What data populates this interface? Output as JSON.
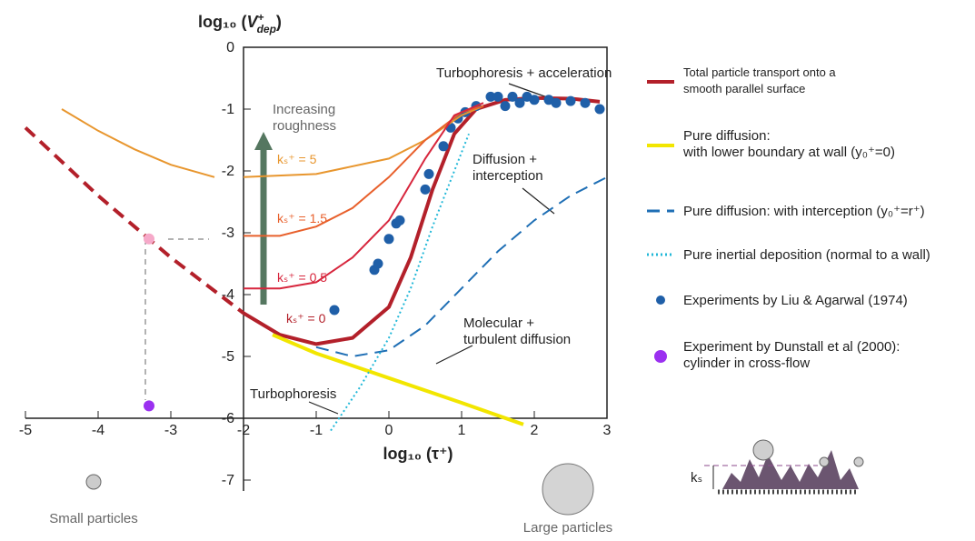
{
  "chart_data": {
    "type": "line",
    "xlabel": "log₁₀ (τ⁺)",
    "ylabel": [
      "log₁₀ (",
      "V",
      "+",
      "dep",
      ")"
    ],
    "xlim": [
      -5,
      3
    ],
    "ylim": [
      -7,
      0
    ],
    "xticks": [
      -5,
      -4,
      -3,
      -2,
      -1,
      0,
      1,
      2,
      3
    ],
    "yticks": [
      -7,
      -6,
      -5,
      -4,
      -3,
      -2,
      -1,
      0
    ],
    "series": [
      {
        "name": [
          "Total particle transport onto a",
          "smooth parallel surface"
        ],
        "label": "kₛ⁺ = 0",
        "color": "#b3202a",
        "kind": "line",
        "style": "solid",
        "width": 4,
        "x": [
          -2,
          -1.5,
          -1,
          -0.5,
          0,
          0.3,
          0.6,
          0.9,
          1.2,
          1.6,
          2,
          2.5,
          2.9
        ],
        "values": [
          -4.3,
          -4.65,
          -4.8,
          -4.7,
          -4.2,
          -3.4,
          -2.3,
          -1.4,
          -1.0,
          -0.85,
          -0.82,
          -0.83,
          -0.88
        ]
      },
      {
        "color": "#b3202a",
        "kind": "line",
        "style": "dashed",
        "width": 4,
        "x": [
          -5,
          -4.5,
          -4,
          -3.5,
          -3,
          -2.5,
          -2
        ],
        "values": [
          -1.3,
          -1.85,
          -2.4,
          -2.9,
          -3.4,
          -3.85,
          -4.3
        ]
      },
      {
        "name": [
          "Pure diffusion:",
          "with lower boundary at wall  (y₀⁺=0)"
        ],
        "color": "#f2e600",
        "kind": "line",
        "style": "solid",
        "width": 4,
        "x": [
          -1.6,
          -1,
          0,
          1,
          1.85
        ],
        "values": [
          -4.65,
          -4.95,
          -5.35,
          -5.75,
          -6.1
        ]
      },
      {
        "name": [
          "Pure diffusion: with interception (y₀⁺=r⁺)"
        ],
        "color": "#1f6fb5",
        "kind": "line",
        "style": "dashed",
        "width": 2,
        "x": [
          -1,
          -0.5,
          0,
          0.5,
          1,
          1.5,
          2,
          2.5,
          3
        ],
        "values": [
          -4.85,
          -5.0,
          -4.9,
          -4.5,
          -3.9,
          -3.3,
          -2.8,
          -2.4,
          -2.1
        ]
      },
      {
        "name": [
          "Pure inertial deposition (normal to a wall)"
        ],
        "color": "#22b8d8",
        "kind": "line",
        "style": "dotted",
        "width": 2,
        "x": [
          -0.8,
          -0.4,
          0,
          0.3,
          0.6,
          0.9,
          1.1
        ],
        "values": [
          -6.2,
          -5.5,
          -4.7,
          -3.9,
          -2.9,
          -2.0,
          -1.4
        ]
      },
      {
        "name": [
          "Experiments by Liu & Agarwal (1974)"
        ],
        "color": "#1f5fa8",
        "kind": "scatter",
        "x": [
          -0.75,
          -0.2,
          -0.15,
          0,
          0.1,
          0.15,
          0.5,
          0.55,
          0.75,
          0.85,
          0.95,
          1.05,
          1.2,
          1.4,
          1.5,
          1.6,
          1.7,
          1.8,
          1.9,
          2.0,
          2.2,
          2.3,
          2.5,
          2.7,
          2.9
        ],
        "values": [
          -4.25,
          -3.6,
          -3.5,
          -3.1,
          -2.85,
          -2.8,
          -2.3,
          -2.05,
          -1.6,
          -1.3,
          -1.15,
          -1.05,
          -0.95,
          -0.8,
          -0.8,
          -0.95,
          -0.8,
          -0.9,
          -0.8,
          -0.85,
          -0.85,
          -0.9,
          -0.87,
          -0.9,
          -1.0
        ]
      },
      {
        "name": [
          "Experiment by Dunstall et al (2000):",
          "cylinder in cross-flow"
        ],
        "color": "#9b30f0",
        "kind": "scatter",
        "x": [
          -3.3
        ],
        "values": [
          -5.8
        ]
      },
      {
        "color": "#f6a9c9",
        "kind": "scatter",
        "x": [
          -3.3
        ],
        "values": [
          -3.1
        ]
      },
      {
        "label": "kₛ⁺ = 5",
        "color": "#e8962e",
        "kind": "line",
        "style": "solid",
        "width": 2,
        "x": [
          -4.5,
          -4,
          -3.5,
          -3,
          -2.4,
          -2.2,
          -2,
          -1,
          0,
          0.5,
          1,
          1.3
        ],
        "values": [
          -1.0,
          -1.35,
          -1.65,
          -1.9,
          -2.1,
          null,
          -2.1,
          -2.05,
          -1.8,
          -1.5,
          -1.1,
          -0.95
        ]
      },
      {
        "label": "kₛ⁺ = 1.5",
        "color": "#e8602c",
        "kind": "line",
        "style": "solid",
        "width": 2,
        "x": [
          -2,
          -1.5,
          -1,
          -0.5,
          0,
          0.5,
          1,
          1.3
        ],
        "values": [
          -3.05,
          -3.05,
          -2.9,
          -2.6,
          -2.1,
          -1.5,
          -1.05,
          -0.95
        ]
      },
      {
        "label": "kₛ⁺ = 0.5",
        "color": "#d7263d",
        "kind": "line",
        "style": "solid",
        "width": 2,
        "x": [
          -2,
          -1.5,
          -1,
          -0.5,
          0,
          0.5,
          0.9,
          1.3
        ],
        "values": [
          -3.9,
          -3.9,
          -3.8,
          -3.4,
          -2.8,
          -1.8,
          -1.1,
          -0.9
        ]
      }
    ],
    "annotations": [
      "Turbophoresis + acceleration",
      "Diffusion +",
      "interception",
      "Molecular +",
      "turbulent diffusion",
      "Turbophoresis",
      "Increasing",
      "roughness",
      "Small particles",
      "Large particles",
      "kₛ"
    ]
  }
}
